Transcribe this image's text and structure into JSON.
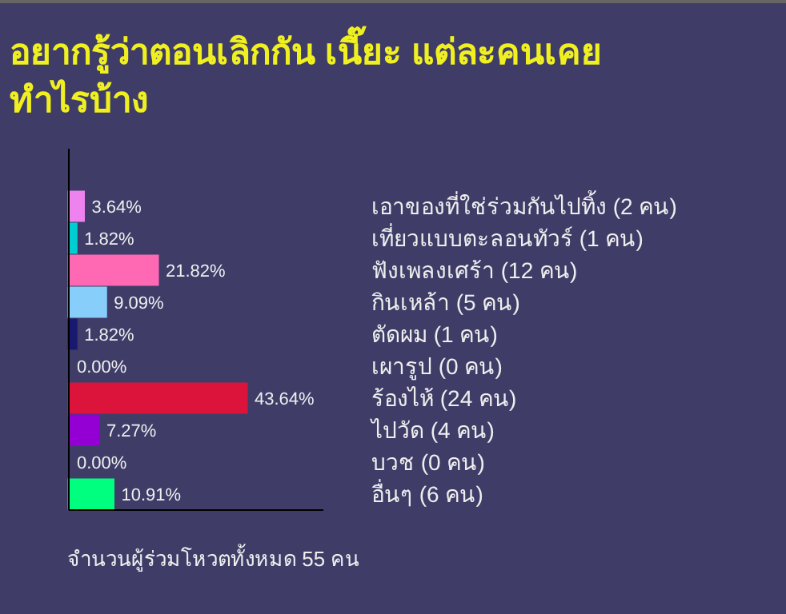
{
  "chart_data": {
    "type": "bar",
    "orientation": "horizontal",
    "title": "อยากรู้ว่าตอนเลิกกัน เนี๊ยะ แต่ละคนเคย ทำไรบ้าง",
    "categories": [
      "เอาของที่ใช่ร่วมกันไปทิ้ง (2 คน)",
      "เที่ยวแบบตะลอนทัวร์ (1 คน)",
      "ฟังเพลงเศร้า (12 คน)",
      "กินเหล้า (5 คน)",
      "ตัดผม (1 คน)",
      "เผารูป (0 คน)",
      "ร้องไห้ (24 คน)",
      "ไปวัด (4 คน)",
      "บวช (0 คน)",
      "อื่นๆ (6 คน)"
    ],
    "values": [
      3.64,
      1.82,
      21.82,
      9.09,
      1.82,
      0.0,
      43.64,
      7.27,
      0.0,
      10.91
    ],
    "value_labels": [
      "3.64%",
      "1.82%",
      "21.82%",
      "9.09%",
      "1.82%",
      "0.00%",
      "43.64%",
      "7.27%",
      "0.00%",
      "10.91%"
    ],
    "colors": [
      "#ee82ee",
      "#00ced1",
      "#ff69b4",
      "#87cefa",
      "#191970",
      "#cd853f",
      "#dc143c",
      "#9400d3",
      "#708090",
      "#00ff7f"
    ],
    "annotations": [
      "จำนวนผู้ร่วมโหวตทั้งหมด 55 คน"
    ]
  }
}
